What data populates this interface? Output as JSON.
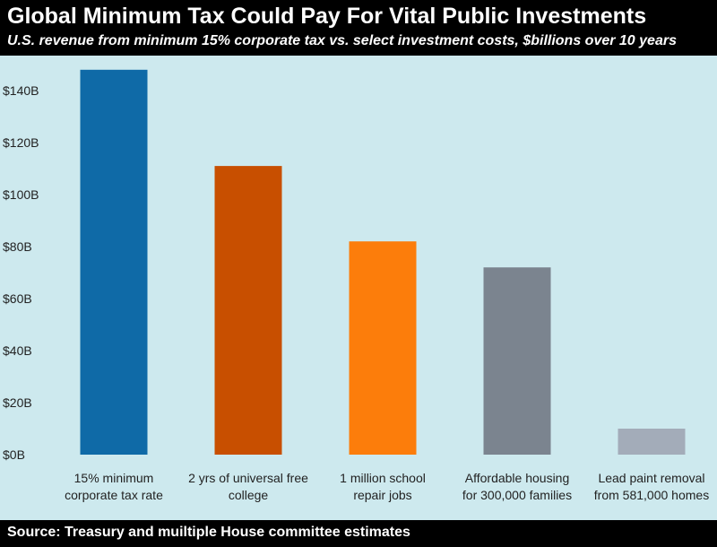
{
  "header": {
    "title": "Global Minimum Tax Could Pay For Vital Public Investments",
    "subtitle": "U.S. revenue from minimum 15% corporate tax vs. select investment costs, $billions over 10 years"
  },
  "footer": {
    "source": "Source: Treasury and muiltiple House committee estimates"
  },
  "chart_data": {
    "type": "bar",
    "title": "Global Minimum Tax Could Pay For Vital Public Investments",
    "subtitle": "U.S. revenue from minimum 15% corporate tax vs. select investment costs, $billions over 10 years",
    "xlabel": "",
    "ylabel": "",
    "ylim": [
      0,
      150
    ],
    "yticks": [
      0,
      20,
      40,
      60,
      80,
      100,
      120,
      140
    ],
    "ytick_labels": [
      "$0B",
      "$20B",
      "$40B",
      "$60B",
      "$80B",
      "$100B",
      "$120B",
      "$140B"
    ],
    "grid": false,
    "legend": "none",
    "categories": [
      [
        "15% minimum",
        "corporate tax rate"
      ],
      [
        "2 yrs of universal free",
        "college"
      ],
      [
        "1 million school",
        "repair jobs"
      ],
      [
        "Affordable housing",
        "for 300,000 families"
      ],
      [
        "Lead paint removal",
        "from 581,000 homes"
      ]
    ],
    "values": [
      148,
      111,
      82,
      72,
      10
    ],
    "colors": [
      "#0f6aa7",
      "#c84f00",
      "#fc7d0b",
      "#7b848f",
      "#a3acb9"
    ]
  }
}
